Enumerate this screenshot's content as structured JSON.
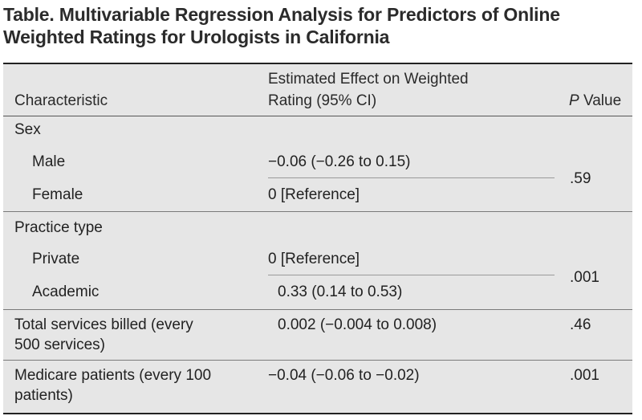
{
  "table": {
    "title": "Table. Multivariable Regression Analysis for Predictors of Online Weighted Ratings for Urologists in California",
    "headers": {
      "characteristic": "Characteristic",
      "effect_line1": "Estimated Effect on Weighted",
      "effect_line2": "Rating (95% CI)",
      "pvalue_p": "P",
      "pvalue_rest": " Value"
    },
    "rows": {
      "sex": {
        "label": "Sex"
      },
      "male": {
        "label": "Male",
        "effect": "−0.06 (−0.26 to 0.15)"
      },
      "female": {
        "label": "Female",
        "effect": "0 [Reference]"
      },
      "sex_p": ".59",
      "practice": {
        "label": "Practice type"
      },
      "private": {
        "label": "Private",
        "effect": "0 [Reference]"
      },
      "academic": {
        "label": "Academic",
        "effect": "0.33 (0.14 to 0.53)"
      },
      "practice_p": ".001",
      "services": {
        "label1": "Total services billed (every",
        "label2": "500 services)",
        "effect": "0.002 (−0.004 to 0.008)",
        "p": ".46"
      },
      "medicare": {
        "label1": "Medicare patients (every 100",
        "label2": "patients)",
        "effect": "−0.04 (−0.06 to −0.02)",
        "p": ".001"
      }
    }
  }
}
